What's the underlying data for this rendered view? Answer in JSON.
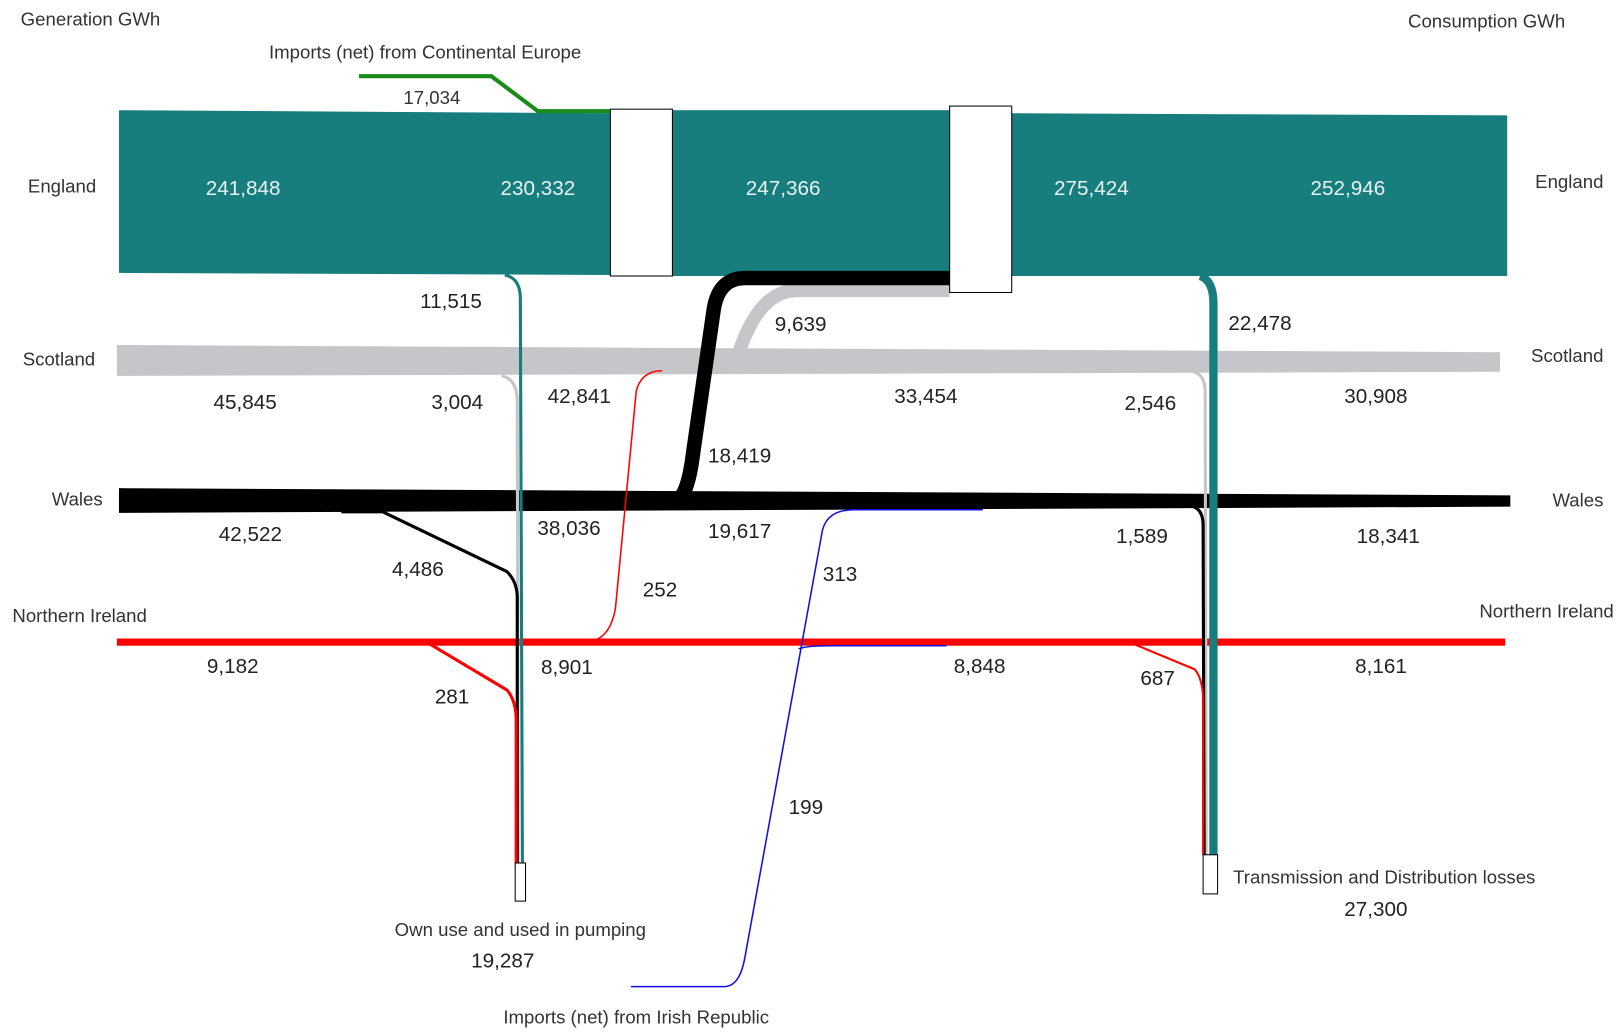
{
  "headers": {
    "generation": "Generation GWh",
    "consumption": "Consumption GWh"
  },
  "regions_left": [
    "England",
    "Scotland",
    "Wales",
    "Northern Ireland"
  ],
  "regions_right": [
    "England",
    "Scotland",
    "Wales",
    "Northern Ireland"
  ],
  "england": [
    "241,848",
    "230,332",
    "247,366",
    "275,424",
    "252,946"
  ],
  "scotland": [
    "45,845",
    "3,004",
    "42,841",
    "33,454",
    "2,546",
    "30,908"
  ],
  "wales": [
    "42,522",
    "4,486",
    "38,036",
    "19,617",
    "1,589",
    "18,341"
  ],
  "northern_ireland": [
    "9,182",
    "281",
    "8,901",
    "8,848",
    "687",
    "8,161"
  ],
  "transfers": {
    "england_own_use": "11,515",
    "scotland_to_england": "9,639",
    "england_losses": "22,478",
    "wales_to_england": "18,419",
    "ni_to_scotland": "252",
    "irish_to_wales": "313",
    "irish_to_ni": "199"
  },
  "imports_europe": {
    "label": "Imports (net) from Continental Europe",
    "value": "17,034"
  },
  "imports_ireland": {
    "label": "Imports (net) from Irish Republic"
  },
  "own_use": {
    "label": "Own use and used in pumping",
    "value": "19,287"
  },
  "losses": {
    "label": "Transmission and Distribution losses",
    "value": "27,300"
  }
}
